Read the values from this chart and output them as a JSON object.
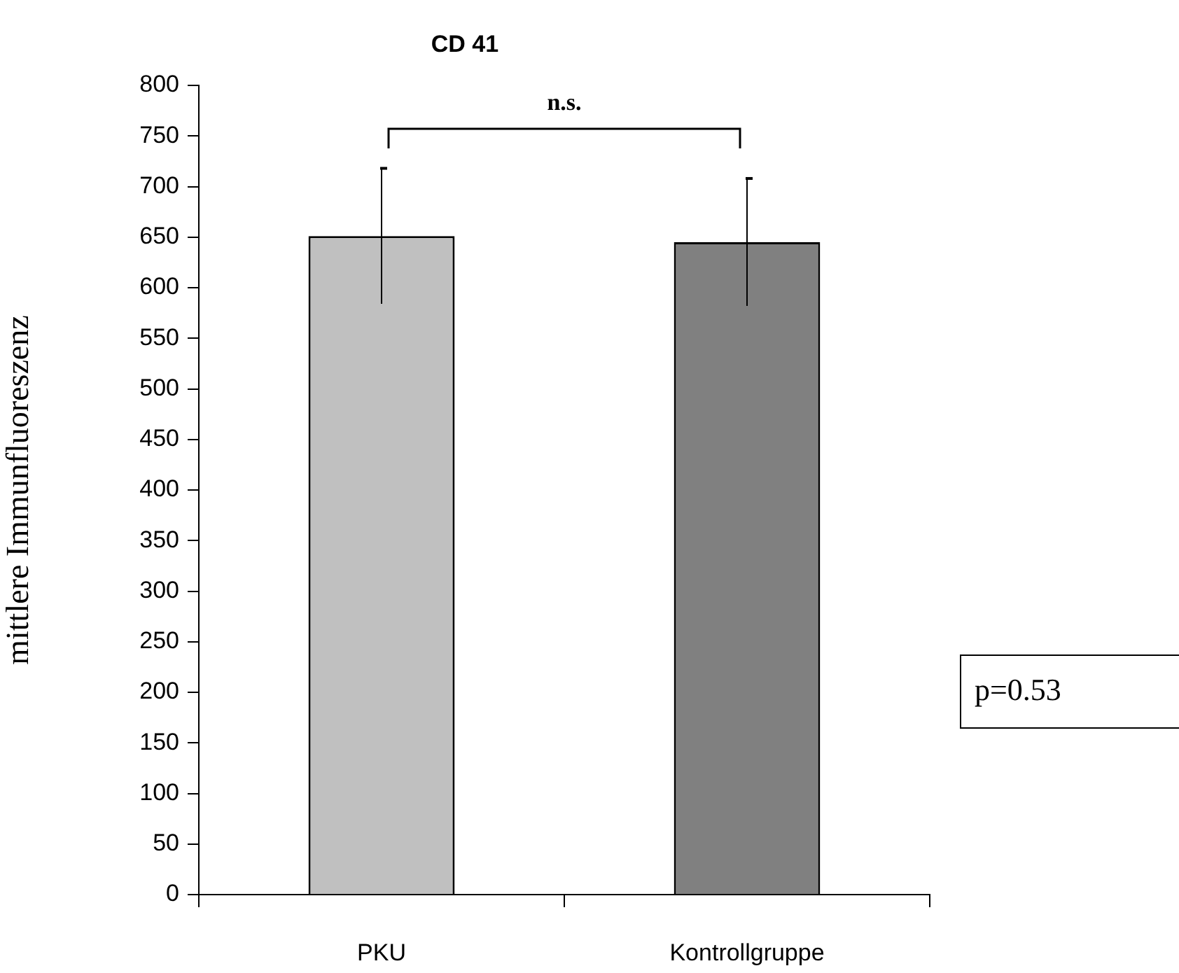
{
  "chart_data": {
    "type": "bar",
    "title": "CD 41",
    "ylabel": "mittlere Immunfluoreszenz",
    "categories": [
      "PKU",
      "Kontrollgruppe"
    ],
    "values": [
      651,
      645
    ],
    "colors": [
      "#c0c0c0",
      "#808080"
    ],
    "errors": [
      67,
      63
    ],
    "ylim": [
      0,
      800
    ],
    "yticks": [
      0,
      50,
      100,
      150,
      200,
      250,
      300,
      350,
      400,
      450,
      500,
      550,
      600,
      650,
      700,
      750,
      800
    ],
    "legend": false,
    "annotations": [
      "n.s.",
      "p=0.53"
    ]
  }
}
